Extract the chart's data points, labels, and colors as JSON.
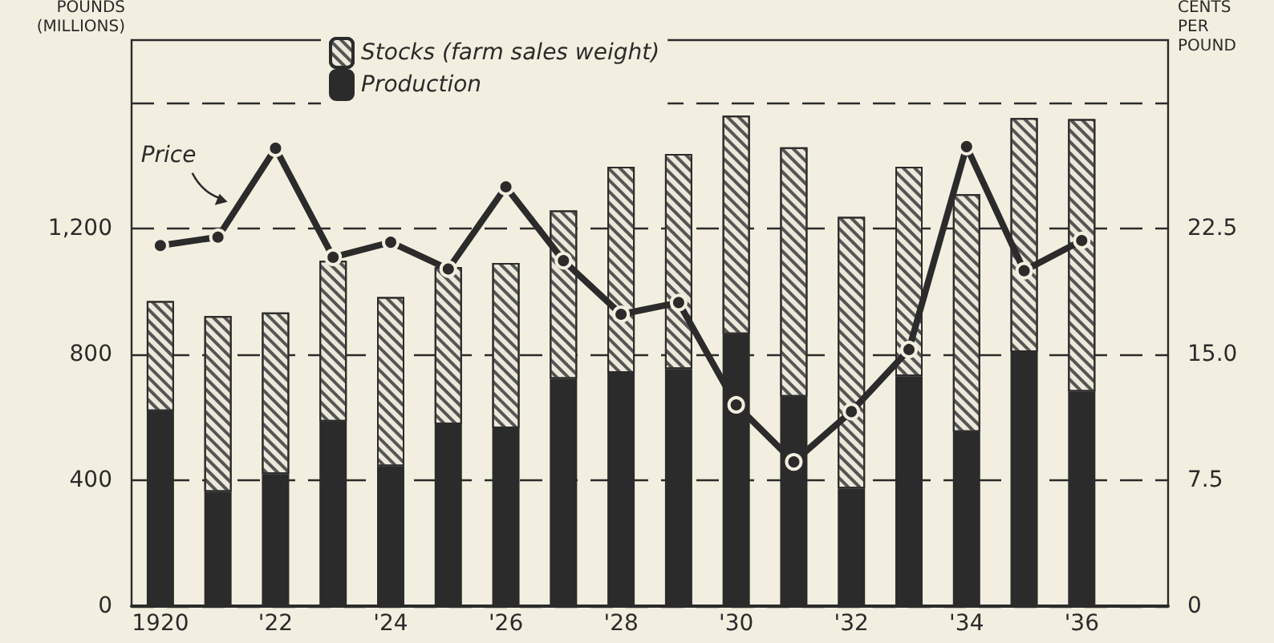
{
  "chart_data": {
    "type": "bar",
    "stacked": true,
    "ylabel": "POUNDS\n(MILLIONS)",
    "y2label": "CENTS\nPER\nPOUND",
    "categories": [
      "1920",
      null,
      "'22",
      null,
      "'24",
      null,
      "'26",
      null,
      "'28",
      null,
      "'30",
      null,
      "'32",
      null,
      "'34",
      null,
      "'36",
      null
    ],
    "series": [
      {
        "name": "Production",
        "color": "#2b2b2b",
        "values": [
          620,
          363,
          420,
          587,
          445,
          579,
          566,
          723,
          742,
          754,
          865,
          666,
          374,
          731,
          554,
          808,
          682,
          null
        ]
      },
      {
        "name": "Stocks (farm sales weight)",
        "color": "#ece8da",
        "values": [
          350,
          559,
          514,
          511,
          538,
          499,
          525,
          535,
          655,
          684,
          695,
          793,
          864,
          666,
          756,
          744,
          867,
          null
        ]
      },
      {
        "name": "Price",
        "type": "line",
        "axis": "y2",
        "color": "#2b2b2b",
        "values": [
          21.5,
          22.0,
          27.3,
          20.8,
          21.7,
          20.1,
          25.0,
          20.6,
          17.4,
          18.1,
          12.0,
          8.6,
          11.6,
          15.3,
          27.4,
          20.0,
          21.8,
          null
        ]
      }
    ],
    "ylim": [
      0,
      1800
    ],
    "yticks": [
      0,
      400,
      800,
      {
        "value": 1200,
        "label": "1,200"
      },
      {
        "value": 1600,
        "label": null
      }
    ],
    "y2lim": [
      0,
      33.75
    ],
    "y2ticks": [
      0,
      7.5,
      {
        "value": 15,
        "label": "15.0"
      },
      22.5
    ],
    "grid": "y",
    "legend": "top",
    "marker": "circle",
    "line_style": "solid"
  }
}
